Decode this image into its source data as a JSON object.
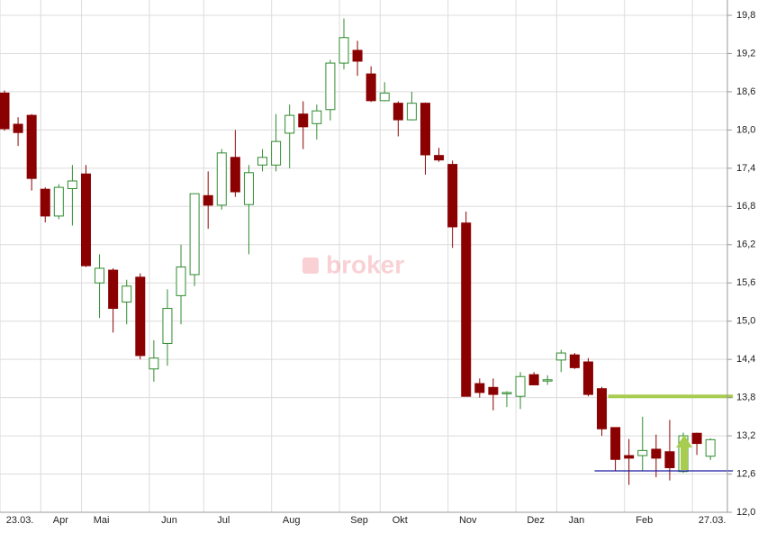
{
  "chart_data": {
    "type": "candlestick",
    "watermark": "broker",
    "categories": [
      null,
      "23.03.",
      null,
      null,
      "Apr",
      null,
      null,
      "Mai",
      null,
      null,
      null,
      null,
      "Jun",
      null,
      null,
      null,
      "Jul",
      null,
      null,
      null,
      null,
      "Aug",
      null,
      null,
      null,
      null,
      "Sep",
      null,
      null,
      "Okt",
      null,
      null,
      null,
      null,
      "Nov",
      null,
      null,
      null,
      null,
      "Dez",
      null,
      null,
      "Jan",
      null,
      null,
      null,
      null,
      "Feb",
      null,
      null,
      null,
      null,
      "27.03."
    ],
    "open": [
      18.58,
      18.09,
      18.23,
      17.07,
      16.65,
      17.08,
      17.31,
      15.6,
      15.8,
      15.3,
      15.69,
      14.25,
      14.65,
      15.4,
      15.73,
      16.97,
      16.82,
      17.57,
      16.83,
      17.45,
      17.45,
      17.95,
      18.25,
      18.1,
      18.32,
      19.05,
      19.25,
      18.88,
      18.46,
      18.42,
      18.16,
      18.42,
      17.6,
      17.46,
      16.54,
      14.02,
      13.96,
      13.86,
      13.82,
      14.16,
      14.06,
      14.39,
      14.47,
      14.36,
      13.94,
      13.33,
      12.89,
      12.89,
      12.99,
      12.95,
      12.64,
      13.24,
      12.88
    ],
    "high": [
      18.62,
      18.2,
      18.25,
      17.1,
      17.15,
      17.45,
      17.45,
      16.05,
      15.83,
      15.65,
      15.75,
      14.7,
      15.5,
      16.2,
      17.0,
      17.35,
      17.7,
      18.0,
      17.45,
      17.7,
      18.25,
      18.4,
      18.45,
      18.4,
      19.1,
      19.75,
      19.4,
      19.0,
      18.75,
      18.45,
      18.6,
      18.43,
      17.72,
      17.52,
      16.72,
      14.1,
      14.1,
      13.9,
      14.2,
      14.2,
      14.15,
      14.55,
      14.5,
      14.42,
      13.97,
      13.33,
      13.15,
      13.5,
      13.22,
      13.45,
      13.25,
      13.25,
      13.16
    ],
    "low": [
      17.99,
      17.75,
      17.05,
      16.55,
      16.6,
      16.5,
      15.85,
      15.05,
      14.82,
      14.95,
      14.4,
      14.05,
      14.3,
      14.95,
      15.55,
      16.45,
      16.75,
      16.95,
      16.05,
      17.35,
      17.35,
      17.4,
      17.7,
      17.85,
      18.15,
      18.95,
      18.85,
      18.44,
      18.45,
      17.9,
      18.15,
      17.3,
      17.5,
      16.15,
      13.82,
      13.8,
      13.6,
      13.65,
      13.62,
      14.0,
      14.0,
      14.2,
      14.25,
      13.82,
      13.2,
      12.65,
      12.43,
      12.65,
      12.55,
      12.5,
      12.62,
      12.9,
      12.82
    ],
    "close": [
      18.02,
      17.96,
      17.24,
      16.65,
      17.1,
      17.2,
      15.87,
      15.83,
      15.2,
      15.55,
      14.46,
      14.42,
      15.2,
      15.85,
      17.0,
      16.82,
      17.64,
      17.03,
      17.33,
      17.57,
      17.82,
      18.23,
      18.05,
      18.3,
      19.05,
      19.45,
      19.08,
      18.46,
      18.58,
      18.16,
      18.42,
      17.61,
      17.53,
      16.48,
      13.82,
      13.88,
      13.85,
      13.88,
      14.13,
      14.0,
      14.08,
      14.5,
      14.27,
      13.85,
      13.31,
      12.83,
      12.85,
      12.97,
      12.85,
      12.7,
      13.2,
      13.08,
      13.14
    ],
    "up_color": "#2e8b2e",
    "down_color": "#8b0000",
    "hlines": [
      {
        "value": 13.82,
        "color": "#a8cc50",
        "from": 45,
        "to": 52
      },
      {
        "value": 12.65,
        "color": "#1a1aa0",
        "from": 44,
        "to": 52
      }
    ],
    "ylim": [
      12.0,
      19.8
    ],
    "yticks": [
      {
        "value": 12.0,
        "label": "12,0"
      },
      {
        "value": 12.6,
        "label": "12,6"
      },
      {
        "value": 13.2,
        "label": "13,2"
      },
      {
        "value": 13.8,
        "label": "13,8"
      },
      {
        "value": 14.4,
        "label": "14,4"
      },
      {
        "value": 15.0,
        "label": "15,0"
      },
      {
        "value": 15.6,
        "label": "15,6"
      },
      {
        "value": 16.2,
        "label": "16,2"
      },
      {
        "value": 16.8,
        "label": "16,8"
      },
      {
        "value": 17.4,
        "label": "17,4"
      },
      {
        "value": 18.0,
        "label": "18,0"
      },
      {
        "value": 18.6,
        "label": "18,6"
      },
      {
        "value": 19.2,
        "label": "19,2"
      },
      {
        "value": 19.8,
        "label": "19,8"
      }
    ],
    "grid": true
  }
}
